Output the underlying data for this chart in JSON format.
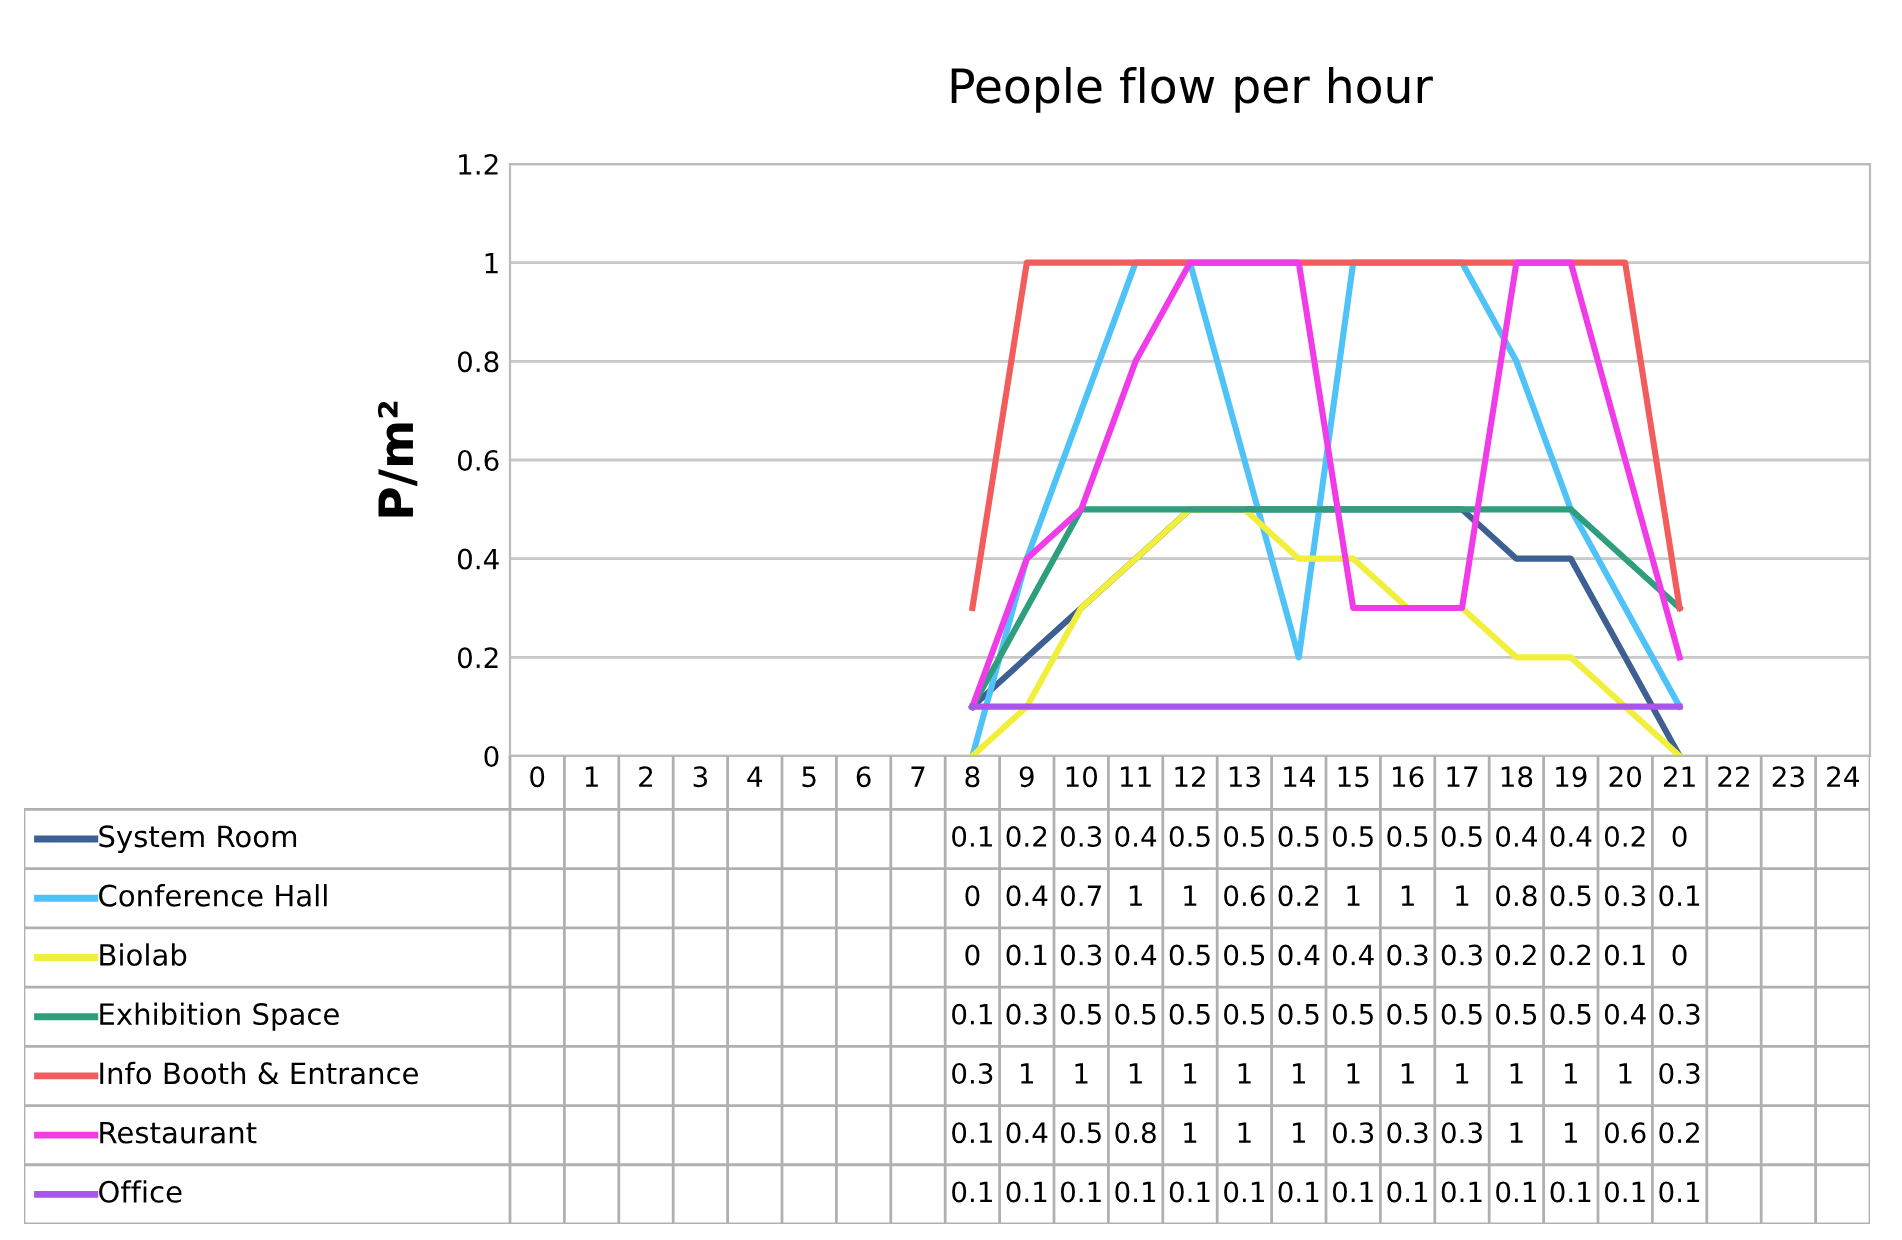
{
  "chart_data": {
    "type": "line",
    "title": "People flow per hour",
    "ylabel": "P/m²",
    "categories": [
      "0",
      "1",
      "2",
      "3",
      "4",
      "5",
      "6",
      "7",
      "8",
      "9",
      "10",
      "11",
      "12",
      "13",
      "14",
      "15",
      "16",
      "17",
      "18",
      "19",
      "20",
      "21",
      "22",
      "23",
      "24"
    ],
    "series": [
      {
        "name": "System Room",
        "color": "#3d5f91",
        "values": [
          null,
          null,
          null,
          null,
          null,
          null,
          null,
          null,
          0.1,
          0.2,
          0.3,
          0.4,
          0.5,
          0.5,
          0.5,
          0.5,
          0.5,
          0.5,
          0.4,
          0.4,
          0.2,
          0,
          null,
          null,
          null
        ]
      },
      {
        "name": "Conference Hall",
        "color": "#4fc3f7",
        "values": [
          null,
          null,
          null,
          null,
          null,
          null,
          null,
          null,
          0,
          0.4,
          0.7,
          1,
          1,
          0.6,
          0.2,
          1,
          1,
          1,
          0.8,
          0.5,
          0.3,
          0.1,
          null,
          null,
          null
        ]
      },
      {
        "name": "Biolab",
        "color": "#f2ee3c",
        "values": [
          null,
          null,
          null,
          null,
          null,
          null,
          null,
          null,
          0,
          0.1,
          0.3,
          0.4,
          0.5,
          0.5,
          0.4,
          0.4,
          0.3,
          0.3,
          0.2,
          0.2,
          0.1,
          0,
          null,
          null,
          null
        ]
      },
      {
        "name": "Exhibition Space",
        "color": "#2e9e7e",
        "values": [
          null,
          null,
          null,
          null,
          null,
          null,
          null,
          null,
          0.1,
          0.3,
          0.5,
          0.5,
          0.5,
          0.5,
          0.5,
          0.5,
          0.5,
          0.5,
          0.5,
          0.5,
          0.4,
          0.3,
          null,
          null,
          null
        ]
      },
      {
        "name": "Info Booth & Entrance",
        "color": "#f25c5c",
        "values": [
          null,
          null,
          null,
          null,
          null,
          null,
          null,
          null,
          0.3,
          1,
          1,
          1,
          1,
          1,
          1,
          1,
          1,
          1,
          1,
          1,
          1,
          0.3,
          null,
          null,
          null
        ]
      },
      {
        "name": "Restaurant",
        "color": "#f03ce8",
        "values": [
          null,
          null,
          null,
          null,
          null,
          null,
          null,
          null,
          0.1,
          0.4,
          0.5,
          0.8,
          1,
          1,
          1,
          0.3,
          0.3,
          0.3,
          1,
          1,
          0.6,
          0.2,
          null,
          null,
          null
        ]
      },
      {
        "name": "Office",
        "color": "#a855e8",
        "values": [
          null,
          null,
          null,
          null,
          null,
          null,
          null,
          null,
          0.1,
          0.1,
          0.1,
          0.1,
          0.1,
          0.1,
          0.1,
          0.1,
          0.1,
          0.1,
          0.1,
          0.1,
          0.1,
          0.1,
          null,
          null,
          null
        ]
      }
    ],
    "ylim": [
      0,
      1.2
    ],
    "yticks": [
      0,
      0.2,
      0.4,
      0.6,
      0.8,
      1,
      1.2
    ],
    "grid": "y",
    "legend": "bottom",
    "data_labels": true,
    "marker": "none",
    "line_style": "solid"
  }
}
